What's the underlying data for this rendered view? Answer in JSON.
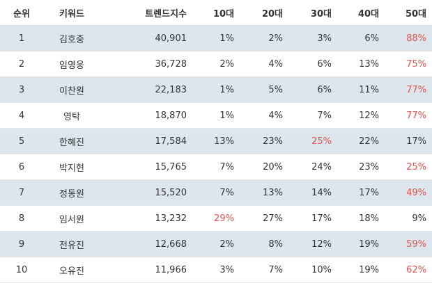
{
  "headers": {
    "rank": "순위",
    "keyword": "키워드",
    "index": "트렌드지수",
    "age10": "10대",
    "age20": "20대",
    "age30": "30대",
    "age40": "40대",
    "age50": "50대"
  },
  "highlight_color": "#e8504a",
  "rows": [
    {
      "rank": "1",
      "keyword": "김호중",
      "index": "40,901",
      "a10": "1%",
      "a20": "2%",
      "a30": "3%",
      "a40": "6%",
      "a50": "88%",
      "hl": "a50"
    },
    {
      "rank": "2",
      "keyword": "임영웅",
      "index": "36,728",
      "a10": "2%",
      "a20": "4%",
      "a30": "6%",
      "a40": "13%",
      "a50": "75%",
      "hl": "a50"
    },
    {
      "rank": "3",
      "keyword": "이찬원",
      "index": "22,183",
      "a10": "1%",
      "a20": "5%",
      "a30": "6%",
      "a40": "11%",
      "a50": "77%",
      "hl": "a50"
    },
    {
      "rank": "4",
      "keyword": "영탁",
      "index": "18,870",
      "a10": "1%",
      "a20": "4%",
      "a30": "7%",
      "a40": "12%",
      "a50": "77%",
      "hl": "a50"
    },
    {
      "rank": "5",
      "keyword": "한혜진",
      "index": "17,584",
      "a10": "13%",
      "a20": "23%",
      "a30": "25%",
      "a40": "22%",
      "a50": "17%",
      "hl": "a30"
    },
    {
      "rank": "6",
      "keyword": "박지현",
      "index": "15,765",
      "a10": "7%",
      "a20": "20%",
      "a30": "24%",
      "a40": "23%",
      "a50": "25%",
      "hl": "a50"
    },
    {
      "rank": "7",
      "keyword": "정동원",
      "index": "15,520",
      "a10": "7%",
      "a20": "13%",
      "a30": "14%",
      "a40": "17%",
      "a50": "49%",
      "hl": "a50"
    },
    {
      "rank": "8",
      "keyword": "임서원",
      "index": "13,232",
      "a10": "29%",
      "a20": "27%",
      "a30": "17%",
      "a40": "18%",
      "a50": "9%",
      "hl": "a10"
    },
    {
      "rank": "9",
      "keyword": "전유진",
      "index": "12,668",
      "a10": "2%",
      "a20": "8%",
      "a30": "12%",
      "a40": "19%",
      "a50": "59%",
      "hl": "a50"
    },
    {
      "rank": "10",
      "keyword": "오유진",
      "index": "11,966",
      "a10": "3%",
      "a20": "7%",
      "a30": "10%",
      "a40": "19%",
      "a50": "62%",
      "hl": "a50"
    }
  ]
}
